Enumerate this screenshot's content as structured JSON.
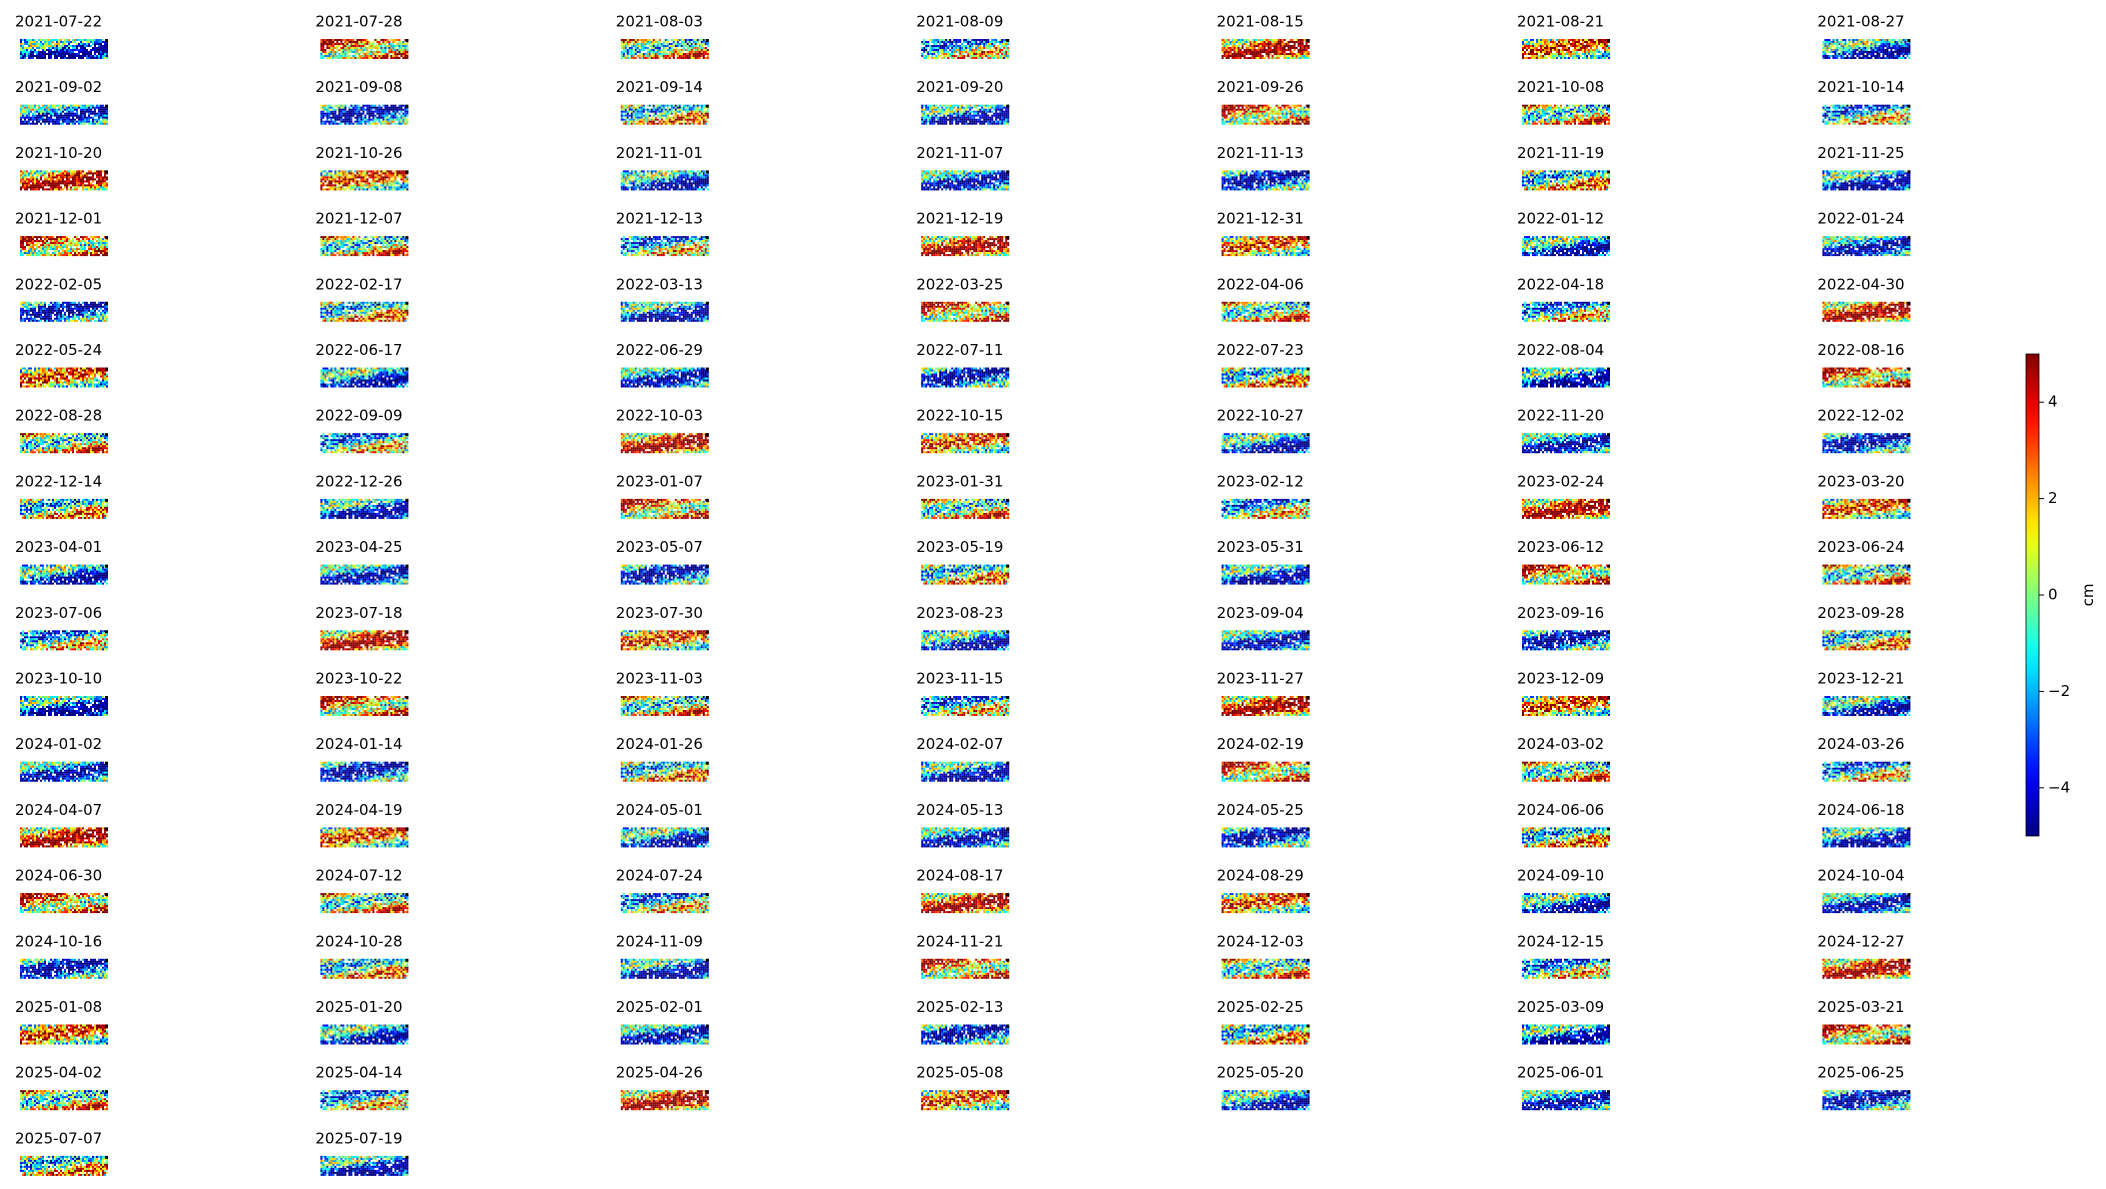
{
  "chart_data": {
    "type": "image-grid",
    "columns": 7,
    "colormap": "jet",
    "titles": [
      "2021-07-22",
      "2021-07-28",
      "2021-08-03",
      "2021-08-09",
      "2021-08-15",
      "2021-08-21",
      "2021-08-27",
      "2021-09-02",
      "2021-09-08",
      "2021-09-14",
      "2021-09-20",
      "2021-09-26",
      "2021-10-08",
      "2021-10-14",
      "2021-10-20",
      "2021-10-26",
      "2021-11-01",
      "2021-11-07",
      "2021-11-13",
      "2021-11-19",
      "2021-11-25",
      "2021-12-01",
      "2021-12-07",
      "2021-12-13",
      "2021-12-19",
      "2021-12-31",
      "2022-01-12",
      "2022-01-24",
      "2022-02-05",
      "2022-02-17",
      "2022-03-13",
      "2022-03-25",
      "2022-04-06",
      "2022-04-18",
      "2022-04-30",
      "2022-05-24",
      "2022-06-17",
      "2022-06-29",
      "2022-07-11",
      "2022-07-23",
      "2022-08-04",
      "2022-08-16",
      "2022-08-28",
      "2022-09-09",
      "2022-10-03",
      "2022-10-15",
      "2022-10-27",
      "2022-11-20",
      "2022-12-02",
      "2022-12-14",
      "2022-12-26",
      "2023-01-07",
      "2023-01-31",
      "2023-02-12",
      "2023-02-24",
      "2023-03-20",
      "2023-04-01",
      "2023-04-25",
      "2023-05-07",
      "2023-05-19",
      "2023-05-31",
      "2023-06-12",
      "2023-06-24",
      "2023-07-06",
      "2023-07-18",
      "2023-07-30",
      "2023-08-23",
      "2023-09-04",
      "2023-09-16",
      "2023-09-28",
      "2023-10-10",
      "2023-10-22",
      "2023-11-03",
      "2023-11-15",
      "2023-11-27",
      "2023-12-09",
      "2023-12-21",
      "2024-01-02",
      "2024-01-14",
      "2024-01-26",
      "2024-02-07",
      "2024-02-19",
      "2024-03-02",
      "2024-03-26",
      "2024-04-07",
      "2024-04-19",
      "2024-05-01",
      "2024-05-13",
      "2024-05-25",
      "2024-06-06",
      "2024-06-18",
      "2024-06-30",
      "2024-07-12",
      "2024-07-24",
      "2024-08-17",
      "2024-08-29",
      "2024-09-10",
      "2024-10-04",
      "2024-10-16",
      "2024-10-28",
      "2024-11-09",
      "2024-11-21",
      "2024-12-03",
      "2024-12-15",
      "2024-12-27",
      "2025-01-08",
      "2025-01-20",
      "2025-02-01",
      "2025-02-13",
      "2025-02-25",
      "2025-03-09",
      "2025-03-21",
      "2025-04-02",
      "2025-04-14",
      "2025-04-26",
      "2025-05-08",
      "2025-05-20",
      "2025-06-01",
      "2025-06-25",
      "2025-07-07",
      "2025-07-19"
    ],
    "colorbar": {
      "label": "cm",
      "ylim": [
        -5,
        5
      ],
      "yticks": [
        {
          "value": -4,
          "label": "−4"
        },
        {
          "value": -2,
          "label": "−2"
        },
        0,
        2,
        4
      ]
    }
  }
}
